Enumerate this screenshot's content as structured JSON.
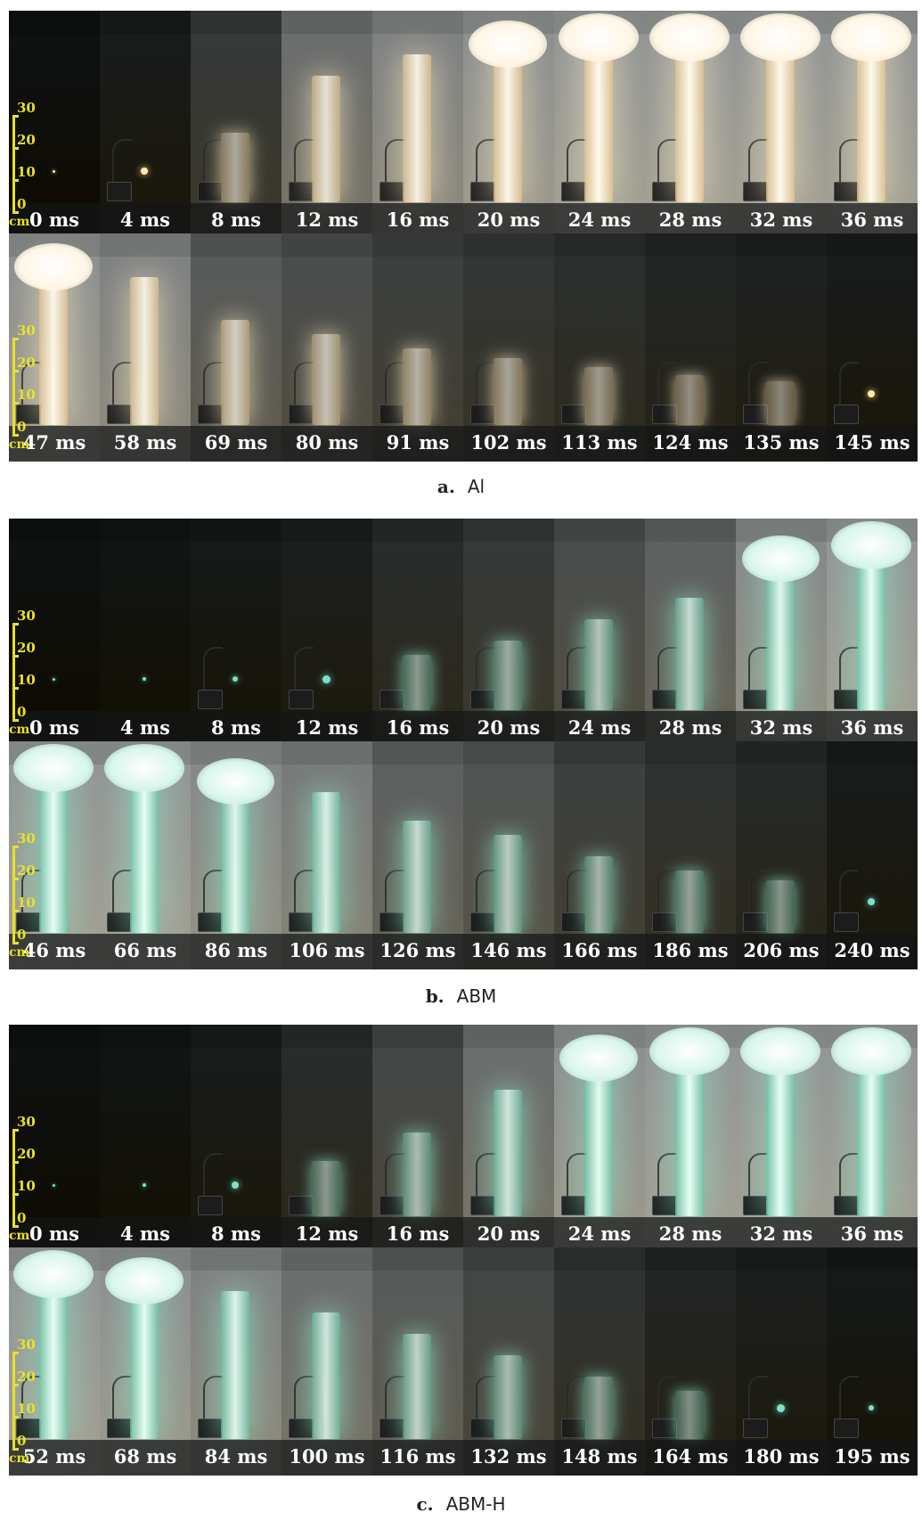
{
  "scale": {
    "marks": [
      "30",
      "20",
      "10",
      "0"
    ],
    "unit": "cm"
  },
  "panels": [
    {
      "letter": "a.",
      "name": "Al",
      "rows": [
        {
          "times": [
            "0 ms",
            "4 ms",
            "8 ms",
            "12 ms",
            "16 ms",
            "20 ms",
            "24 ms",
            "28 ms",
            "32 ms",
            "36 ms"
          ],
          "glow": [
            0.0,
            0.08,
            0.3,
            0.7,
            0.85,
            0.95,
            1.0,
            1.0,
            1.0,
            1.0
          ]
        },
        {
          "times": [
            "47 ms",
            "58 ms",
            "69 ms",
            "80 ms",
            "91 ms",
            "102 ms",
            "113 ms",
            "124 ms",
            "135 ms",
            "145 ms"
          ],
          "glow": [
            0.95,
            0.85,
            0.55,
            0.45,
            0.35,
            0.28,
            0.22,
            0.16,
            0.12,
            0.08
          ]
        }
      ]
    },
    {
      "letter": "b.",
      "name": "ABM",
      "rows": [
        {
          "times": [
            "0 ms",
            "4 ms",
            "8 ms",
            "12 ms",
            "16 ms",
            "20 ms",
            "24 ms",
            "28 ms",
            "32 ms",
            "36 ms"
          ],
          "glow": [
            0.0,
            0.03,
            0.06,
            0.1,
            0.2,
            0.3,
            0.45,
            0.6,
            0.9,
            1.0
          ]
        },
        {
          "times": [
            "46 ms",
            "66 ms",
            "86 ms",
            "106 ms",
            "126 ms",
            "146 ms",
            "166 ms",
            "186 ms",
            "206 ms",
            "240 ms"
          ],
          "glow": [
            1.0,
            1.0,
            0.9,
            0.8,
            0.6,
            0.5,
            0.35,
            0.25,
            0.18,
            0.08
          ]
        }
      ]
    },
    {
      "letter": "c.",
      "name": "ABM-H",
      "rows": [
        {
          "times": [
            "0 ms",
            "4 ms",
            "8 ms",
            "12 ms",
            "16 ms",
            "20 ms",
            "24 ms",
            "28 ms",
            "32 ms",
            "36 ms"
          ],
          "glow": [
            0.0,
            0.03,
            0.08,
            0.2,
            0.4,
            0.7,
            0.95,
            1.0,
            1.0,
            1.0
          ]
        },
        {
          "times": [
            "52 ms",
            "68 ms",
            "84 ms",
            "100 ms",
            "116 ms",
            "132 ms",
            "148 ms",
            "164 ms",
            "180 ms",
            "195 ms"
          ],
          "glow": [
            1.0,
            0.95,
            0.85,
            0.7,
            0.55,
            0.4,
            0.25,
            0.15,
            0.1,
            0.06
          ]
        }
      ]
    }
  ]
}
